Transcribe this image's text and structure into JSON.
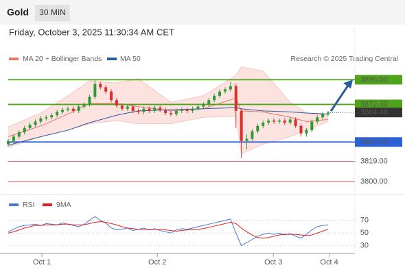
{
  "header": {
    "symbol": "Gold",
    "timeframe": "30 MIN",
    "timestamp": "Friday, October 3, 2025 11:30:34 AM CET"
  },
  "chart_data": [
    {
      "type": "candlestick",
      "source": "Research © 2025 Trading Central",
      "x": [
        0,
        1,
        2,
        3,
        4,
        5,
        6,
        7,
        8,
        9,
        10,
        11,
        12,
        13,
        14,
        15,
        16,
        17,
        18,
        19,
        20,
        21,
        22,
        23,
        24,
        25,
        26,
        27,
        28,
        29,
        30,
        31,
        32,
        33,
        34,
        35,
        36,
        37,
        38,
        39,
        40,
        41,
        42,
        43,
        44,
        45,
        46,
        47,
        48,
        49,
        50,
        51,
        52,
        53,
        54,
        55,
        56,
        57,
        58,
        59
      ],
      "xlim": [
        0,
        59
      ],
      "ylim": [
        3790,
        3908
      ],
      "up_color": "#2f9a33",
      "down_color": "#d9302b",
      "open": [
        3835,
        3838,
        3842,
        3846,
        3850,
        3853,
        3856,
        3859,
        3860,
        3862,
        3865,
        3867,
        3868,
        3866,
        3870,
        3872,
        3879,
        3891,
        3888,
        3884,
        3876,
        3871,
        3868,
        3870,
        3866,
        3865,
        3868,
        3866,
        3869,
        3867,
        3864,
        3863,
        3866,
        3867,
        3866,
        3868,
        3870,
        3872,
        3876,
        3880,
        3884,
        3886,
        3889,
        3866,
        3838,
        3840,
        3847,
        3852,
        3855,
        3857,
        3856,
        3857,
        3855,
        3858,
        3852,
        3845,
        3848,
        3856,
        3860,
        3863
      ],
      "high": [
        3840,
        3844,
        3848,
        3852,
        3855,
        3858,
        3861,
        3862,
        3864,
        3867,
        3869,
        3870,
        3870,
        3872,
        3874,
        3881,
        3895,
        3893,
        3890,
        3886,
        3878,
        3873,
        3872,
        3872,
        3868,
        3870,
        3870,
        3871,
        3871,
        3869,
        3866,
        3868,
        3869,
        3869,
        3870,
        3872,
        3874,
        3878,
        3882,
        3886,
        3888,
        3893,
        3891,
        3868,
        3844,
        3849,
        3854,
        3857,
        3859,
        3859,
        3859,
        3859,
        3860,
        3860,
        3854,
        3850,
        3858,
        3862,
        3865,
        3866
      ],
      "low": [
        3833,
        3836,
        3840,
        3844,
        3848,
        3851,
        3854,
        3857,
        3858,
        3860,
        3863,
        3865,
        3864,
        3864,
        3868,
        3870,
        3877,
        3886,
        3882,
        3874,
        3869,
        3866,
        3866,
        3864,
        3863,
        3863,
        3864,
        3864,
        3865,
        3862,
        3861,
        3861,
        3864,
        3864,
        3864,
        3866,
        3868,
        3870,
        3874,
        3878,
        3882,
        3884,
        3850,
        3822,
        3830,
        3838,
        3845,
        3850,
        3853,
        3854,
        3854,
        3853,
        3853,
        3850,
        3842,
        3842,
        3846,
        3854,
        3858,
        3861
      ],
      "close": [
        3838,
        3842,
        3846,
        3850,
        3853,
        3856,
        3859,
        3860,
        3862,
        3865,
        3867,
        3868,
        3866,
        3870,
        3872,
        3879,
        3891,
        3888,
        3884,
        3876,
        3871,
        3868,
        3870,
        3866,
        3865,
        3868,
        3866,
        3869,
        3867,
        3864,
        3863,
        3866,
        3867,
        3866,
        3868,
        3870,
        3872,
        3876,
        3880,
        3884,
        3886,
        3889,
        3866,
        3838,
        3840,
        3847,
        3852,
        3855,
        3857,
        3856,
        3857,
        3855,
        3858,
        3852,
        3845,
        3848,
        3856,
        3860,
        3863,
        3864.49
      ],
      "series": [
        {
          "name": "MA 20 + Bollinger Bands",
          "color": "#e8746a",
          "band_color": "#fbdcd8",
          "x": [
            0,
            6,
            11,
            15,
            20,
            24,
            30,
            36,
            42,
            43,
            47,
            52,
            55,
            59
          ],
          "upper": [
            3851,
            3864,
            3880,
            3894,
            3892,
            3896,
            3874,
            3880,
            3899,
            3907,
            3903,
            3874,
            3864,
            3862
          ],
          "lower": [
            3832,
            3842,
            3848,
            3854,
            3857,
            3854,
            3854,
            3860,
            3861,
            3826,
            3835,
            3842,
            3848,
            3856
          ],
          "values": [
            3842,
            3852,
            3863,
            3873,
            3873,
            3870,
            3866,
            3868,
            3878,
            3866,
            3865,
            3860,
            3856,
            3858
          ]
        },
        {
          "name": "MA 50",
          "color": "#2c5aa0",
          "x": [
            0,
            6,
            11,
            15,
            20,
            24,
            30,
            36,
            42,
            43,
            47,
            52,
            55,
            59
          ],
          "values": [
            3834,
            3842,
            3848,
            3855,
            3862,
            3866,
            3867,
            3868,
            3869,
            3868,
            3866,
            3865,
            3864,
            3863
          ]
        }
      ],
      "levels": [
        {
          "value": 3895,
          "label": "3895.00",
          "color": "#4fa31a",
          "style": "solid",
          "boxed": true
        },
        {
          "value": 3872,
          "label": "3872.00",
          "color": "#4fa31a",
          "style": "solid",
          "boxed": true
        },
        {
          "value": 3864.49,
          "label": "3864.49",
          "color": "#333333",
          "style": "dotted",
          "boxed": true
        },
        {
          "value": 3837,
          "label": "3837.00",
          "color": "#2d62d6",
          "style": "solid",
          "boxed": true
        },
        {
          "value": 3819,
          "label": "3819.00",
          "color": "#d9302b",
          "style": "thin",
          "boxed": false
        },
        {
          "value": 3800,
          "label": "3800.00",
          "color": "#d9302b",
          "style": "thin",
          "boxed": false
        }
      ],
      "target_color": "#2c5aa0"
    },
    {
      "type": "line",
      "x": [
        0,
        1,
        2,
        3,
        4,
        5,
        6,
        7,
        8,
        9,
        10,
        11,
        12,
        13,
        14,
        15,
        16,
        17,
        18,
        19,
        20,
        21,
        22,
        23,
        24,
        25,
        26,
        27,
        28,
        29,
        30,
        31,
        32,
        33,
        34,
        35,
        36,
        37,
        38,
        39,
        40,
        41,
        42,
        43,
        44,
        45,
        46,
        47,
        48,
        49,
        50,
        51,
        52,
        53,
        54,
        55,
        56,
        57,
        58,
        59
      ],
      "xlim": [
        0,
        59
      ],
      "xticks": [
        {
          "value": 6.2,
          "label": "Oct 1"
        },
        {
          "value": 27.5,
          "label": "Oct 2"
        },
        {
          "value": 48.9,
          "label": "Oct 3"
        },
        {
          "value": 59.2,
          "label": "Oct 4"
        }
      ],
      "ylim": [
        20,
        100
      ],
      "yticks": [
        30,
        50,
        70
      ],
      "grid": true,
      "series": [
        {
          "name": "RSI",
          "color": "#4a78d8",
          "values": [
            52,
            56,
            60,
            62,
            63,
            64,
            62,
            65,
            64,
            63,
            66,
            64,
            62,
            60,
            64,
            70,
            76,
            70,
            66,
            58,
            55,
            56,
            58,
            54,
            56,
            58,
            55,
            57,
            54,
            52,
            50,
            55,
            57,
            56,
            58,
            60,
            62,
            64,
            66,
            68,
            70,
            72,
            50,
            30,
            35,
            40,
            45,
            48,
            50,
            48,
            50,
            47,
            49,
            45,
            42,
            48,
            55,
            60,
            62,
            63
          ]
        },
        {
          "name": "9MA",
          "color": "#e02020",
          "values": [
            50,
            52,
            55,
            58,
            60,
            62,
            62,
            63,
            63,
            63,
            64,
            64,
            63,
            63,
            63,
            65,
            67,
            68,
            67,
            65,
            63,
            60,
            58,
            57,
            56,
            56,
            56,
            56,
            56,
            55,
            54,
            53,
            54,
            55,
            55,
            56,
            57,
            59,
            61,
            63,
            65,
            67,
            65,
            58,
            52,
            47,
            43,
            42,
            43,
            45,
            47,
            48,
            48,
            48,
            47,
            46,
            47,
            50,
            53,
            56
          ]
        }
      ]
    }
  ]
}
